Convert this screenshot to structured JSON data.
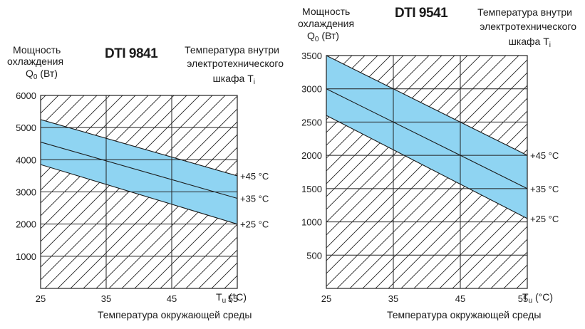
{
  "chart_data": [
    {
      "type": "area",
      "title": "DTI 9841",
      "ylabel_lines": [
        "Мощность",
        "охлаждения",
        "Q",
        "0",
        " (Вт)"
      ],
      "internal_temp_label_lines": [
        "Температура внутри",
        "электротехнического",
        "шкафа T",
        "i"
      ],
      "xlabel": "Температура окружающей среды",
      "x_axis_unit_prefix": "T",
      "x_axis_unit_sub": "u",
      "x_axis_unit_suffix": " (°C)",
      "x": [
        25,
        55
      ],
      "xlim": [
        25,
        55
      ],
      "ylim": [
        0,
        6000
      ],
      "x_ticks": [
        "25",
        "35",
        "45",
        "55"
      ],
      "y_ticks": [
        "1000",
        "2000",
        "3000",
        "4000",
        "5000",
        "6000"
      ],
      "grid": true,
      "hatched_background": true,
      "band_color": "#8fd4f2",
      "series": [
        {
          "name": "+45 °C",
          "values": [
            5250,
            3500
          ]
        },
        {
          "name": "+35 °C",
          "values": [
            4550,
            2800
          ]
        },
        {
          "name": "+25 °C",
          "values": [
            3850,
            2000
          ]
        }
      ]
    },
    {
      "type": "area",
      "title": "DTI 9541",
      "ylabel_lines": [
        "Мощность",
        "охлаждения",
        "Q",
        "0",
        " (Вт)"
      ],
      "internal_temp_label_lines": [
        "Температура внутри",
        "электротехнического",
        "шкафа T",
        "i"
      ],
      "xlabel": "Температура окружающей среды",
      "x_axis_unit_prefix": "T",
      "x_axis_unit_sub": "u",
      "x_axis_unit_suffix": " (°C)",
      "x": [
        25,
        55
      ],
      "xlim": [
        25,
        55
      ],
      "ylim": [
        0,
        3500
      ],
      "x_ticks": [
        "25",
        "35",
        "45",
        "55"
      ],
      "y_ticks": [
        "500",
        "1000",
        "1500",
        "2000",
        "2500",
        "3000",
        "3500"
      ],
      "grid": true,
      "hatched_background": true,
      "band_color": "#8fd4f2",
      "series": [
        {
          "name": "+45 °C",
          "values": [
            3500,
            2000
          ]
        },
        {
          "name": "+35 °C",
          "values": [
            3000,
            1500
          ]
        },
        {
          "name": "+25 °C",
          "values": [
            2600,
            1050
          ]
        }
      ]
    }
  ]
}
